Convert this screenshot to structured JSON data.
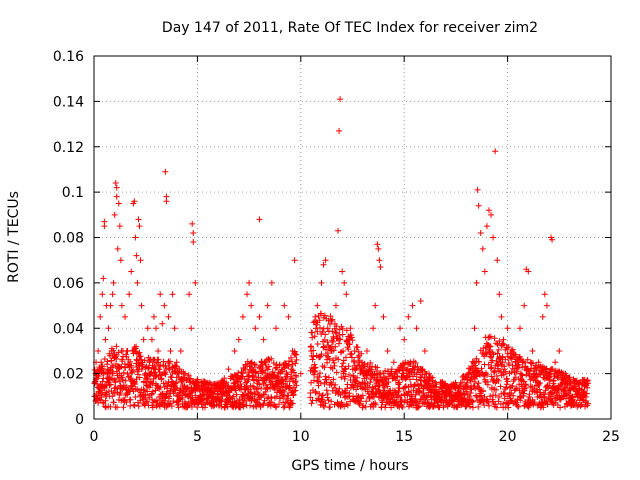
{
  "chart_data": {
    "type": "scatter",
    "title": "Day 147 of 2011, Rate Of TEC Index for receiver zim2",
    "xlabel": "GPS time / hours",
    "ylabel": "ROTI / TECUs",
    "xlim": [
      0,
      25
    ],
    "ylim": [
      0,
      0.16
    ],
    "xticks": [
      0,
      5,
      10,
      15,
      20,
      25
    ],
    "yticks": [
      0,
      0.02,
      0.04,
      0.06,
      0.08,
      0.1,
      0.12,
      0.14,
      0.16
    ],
    "xtick_labels": [
      "0",
      "5",
      "10",
      "15",
      "20",
      "25"
    ],
    "ytick_labels": [
      "0",
      "0.02",
      "0.04",
      "0.06",
      "0.08",
      "0.1",
      "0.12",
      "0.14",
      "0.16"
    ],
    "grid": true,
    "marker": "+",
    "color": "#ff0000",
    "series": [
      {
        "name": "ROTI",
        "points": [
          [
            0.05,
            0.01
          ],
          [
            0.1,
            0.025
          ],
          [
            0.15,
            0.018
          ],
          [
            0.2,
            0.03
          ],
          [
            0.25,
            0.014
          ],
          [
            0.3,
            0.045
          ],
          [
            0.35,
            0.022
          ],
          [
            0.4,
            0.055
          ],
          [
            0.45,
            0.062
          ],
          [
            0.5,
            0.087
          ],
          [
            0.5,
            0.085
          ],
          [
            0.55,
            0.035
          ],
          [
            0.6,
            0.05
          ],
          [
            0.65,
            0.02
          ],
          [
            0.7,
            0.04
          ],
          [
            0.75,
            0.015
          ],
          [
            0.8,
            0.05
          ],
          [
            0.85,
            0.03
          ],
          [
            0.9,
            0.055
          ],
          [
            0.95,
            0.06
          ],
          [
            1.0,
            0.09
          ],
          [
            1.05,
            0.104
          ],
          [
            1.1,
            0.102
          ],
          [
            1.1,
            0.098
          ],
          [
            1.15,
            0.075
          ],
          [
            1.2,
            0.095
          ],
          [
            1.25,
            0.085
          ],
          [
            1.3,
            0.07
          ],
          [
            1.35,
            0.05
          ],
          [
            1.4,
            0.03
          ],
          [
            1.5,
            0.045
          ],
          [
            1.6,
            0.03
          ],
          [
            1.7,
            0.055
          ],
          [
            1.8,
            0.065
          ],
          [
            1.9,
            0.095
          ],
          [
            1.95,
            0.096
          ],
          [
            2.0,
            0.08
          ],
          [
            2.05,
            0.072
          ],
          [
            2.1,
            0.06
          ],
          [
            2.15,
            0.088
          ],
          [
            2.2,
            0.085
          ],
          [
            2.25,
            0.07
          ],
          [
            2.3,
            0.05
          ],
          [
            2.4,
            0.035
          ],
          [
            2.5,
            0.02
          ],
          [
            2.6,
            0.04
          ],
          [
            2.7,
            0.025
          ],
          [
            2.8,
            0.035
          ],
          [
            2.9,
            0.045
          ],
          [
            3.0,
            0.04
          ],
          [
            3.1,
            0.03
          ],
          [
            3.2,
            0.055
          ],
          [
            3.3,
            0.042
          ],
          [
            3.4,
            0.05
          ],
          [
            3.45,
            0.109
          ],
          [
            3.5,
            0.098
          ],
          [
            3.5,
            0.096
          ],
          [
            3.6,
            0.045
          ],
          [
            3.7,
            0.03
          ],
          [
            3.8,
            0.055
          ],
          [
            3.9,
            0.04
          ],
          [
            4.0,
            0.025
          ],
          [
            4.2,
            0.03
          ],
          [
            4.4,
            0.02
          ],
          [
            4.6,
            0.055
          ],
          [
            4.7,
            0.04
          ],
          [
            4.75,
            0.086
          ],
          [
            4.8,
            0.082
          ],
          [
            4.8,
            0.078
          ],
          [
            4.9,
            0.06
          ],
          [
            5.0,
            0.015
          ],
          [
            5.2,
            0.01
          ],
          [
            5.5,
            0.012
          ],
          [
            5.8,
            0.015
          ],
          [
            6.0,
            0.012
          ],
          [
            6.3,
            0.018
          ],
          [
            6.5,
            0.022
          ],
          [
            6.8,
            0.03
          ],
          [
            7.0,
            0.035
          ],
          [
            7.2,
            0.045
          ],
          [
            7.4,
            0.055
          ],
          [
            7.5,
            0.06
          ],
          [
            7.6,
            0.05
          ],
          [
            7.8,
            0.04
          ],
          [
            8.0,
            0.088
          ],
          [
            8.0,
            0.045
          ],
          [
            8.2,
            0.035
          ],
          [
            8.4,
            0.05
          ],
          [
            8.6,
            0.06
          ],
          [
            8.8,
            0.04
          ],
          [
            9.0,
            0.02
          ],
          [
            9.2,
            0.05
          ],
          [
            9.4,
            0.045
          ],
          [
            9.6,
            0.03
          ],
          [
            9.7,
            0.07
          ],
          [
            10.0,
            0.02
          ],
          [
            10.5,
            0.03
          ],
          [
            10.7,
            0.045
          ],
          [
            10.8,
            0.05
          ],
          [
            11.0,
            0.06
          ],
          [
            11.1,
            0.068
          ],
          [
            11.2,
            0.07
          ],
          [
            11.3,
            0.04
          ],
          [
            11.5,
            0.03
          ],
          [
            11.7,
            0.05
          ],
          [
            11.8,
            0.083
          ],
          [
            11.85,
            0.127
          ],
          [
            11.9,
            0.141
          ],
          [
            12.0,
            0.065
          ],
          [
            12.1,
            0.06
          ],
          [
            12.2,
            0.055
          ],
          [
            12.4,
            0.04
          ],
          [
            12.6,
            0.03
          ],
          [
            12.8,
            0.025
          ],
          [
            13.0,
            0.02
          ],
          [
            13.2,
            0.03
          ],
          [
            13.5,
            0.04
          ],
          [
            13.6,
            0.05
          ],
          [
            13.7,
            0.077
          ],
          [
            13.75,
            0.075
          ],
          [
            13.8,
            0.07
          ],
          [
            13.85,
            0.067
          ],
          [
            14.0,
            0.045
          ],
          [
            14.2,
            0.03
          ],
          [
            14.5,
            0.025
          ],
          [
            14.8,
            0.04
          ],
          [
            15.0,
            0.035
          ],
          [
            15.2,
            0.045
          ],
          [
            15.4,
            0.05
          ],
          [
            15.6,
            0.04
          ],
          [
            15.8,
            0.052
          ],
          [
            16.0,
            0.03
          ],
          [
            16.2,
            0.02
          ],
          [
            16.5,
            0.012
          ],
          [
            17.0,
            0.01
          ],
          [
            17.5,
            0.01
          ],
          [
            18.0,
            0.015
          ],
          [
            18.2,
            0.022
          ],
          [
            18.4,
            0.04
          ],
          [
            18.5,
            0.06
          ],
          [
            18.55,
            0.101
          ],
          [
            18.6,
            0.094
          ],
          [
            18.7,
            0.082
          ],
          [
            18.8,
            0.075
          ],
          [
            18.9,
            0.065
          ],
          [
            19.0,
            0.085
          ],
          [
            19.1,
            0.092
          ],
          [
            19.2,
            0.09
          ],
          [
            19.3,
            0.08
          ],
          [
            19.4,
            0.118
          ],
          [
            19.5,
            0.07
          ],
          [
            19.6,
            0.055
          ],
          [
            19.7,
            0.045
          ],
          [
            19.8,
            0.035
          ],
          [
            20.0,
            0.04
          ],
          [
            20.2,
            0.03
          ],
          [
            20.4,
            0.025
          ],
          [
            20.6,
            0.04
          ],
          [
            20.8,
            0.05
          ],
          [
            20.9,
            0.066
          ],
          [
            21.0,
            0.065
          ],
          [
            21.2,
            0.03
          ],
          [
            21.5,
            0.025
          ],
          [
            21.7,
            0.045
          ],
          [
            21.8,
            0.055
          ],
          [
            21.9,
            0.05
          ],
          [
            22.0,
            0.02
          ],
          [
            22.1,
            0.08
          ],
          [
            22.15,
            0.079
          ],
          [
            22.3,
            0.025
          ],
          [
            22.5,
            0.03
          ],
          [
            22.8,
            0.02
          ],
          [
            23.0,
            0.015
          ],
          [
            23.3,
            0.012
          ],
          [
            23.6,
            0.01
          ],
          [
            23.8,
            0.015
          ]
        ]
      }
    ],
    "background_band": [
      [
        0.0,
        0.013
      ],
      [
        0.5,
        0.018
      ],
      [
        1.0,
        0.022
      ],
      [
        1.5,
        0.02
      ],
      [
        2.0,
        0.022
      ],
      [
        2.5,
        0.018
      ],
      [
        3.0,
        0.017
      ],
      [
        3.5,
        0.018
      ],
      [
        4.0,
        0.015
      ],
      [
        4.5,
        0.012
      ],
      [
        5.0,
        0.01
      ],
      [
        5.5,
        0.009
      ],
      [
        6.0,
        0.009
      ],
      [
        6.5,
        0.011
      ],
      [
        7.0,
        0.014
      ],
      [
        7.5,
        0.017
      ],
      [
        8.0,
        0.016
      ],
      [
        8.5,
        0.018
      ],
      [
        9.0,
        0.016
      ],
      [
        9.5,
        0.018
      ],
      [
        10.5,
        0.03
      ],
      [
        11.0,
        0.035
      ],
      [
        11.5,
        0.033
      ],
      [
        12.0,
        0.03
      ],
      [
        12.5,
        0.025
      ],
      [
        13.0,
        0.018
      ],
      [
        13.5,
        0.015
      ],
      [
        14.0,
        0.013
      ],
      [
        14.5,
        0.014
      ],
      [
        15.0,
        0.016
      ],
      [
        15.5,
        0.017
      ],
      [
        16.0,
        0.013
      ],
      [
        16.5,
        0.01
      ],
      [
        17.0,
        0.009
      ],
      [
        17.5,
        0.009
      ],
      [
        18.0,
        0.012
      ],
      [
        18.5,
        0.02
      ],
      [
        19.0,
        0.026
      ],
      [
        19.5,
        0.024
      ],
      [
        20.0,
        0.022
      ],
      [
        20.5,
        0.019
      ],
      [
        21.0,
        0.017
      ],
      [
        21.5,
        0.015
      ],
      [
        22.0,
        0.014
      ],
      [
        22.5,
        0.013
      ],
      [
        23.0,
        0.011
      ],
      [
        23.5,
        0.01
      ],
      [
        23.9,
        0.01
      ]
    ]
  }
}
